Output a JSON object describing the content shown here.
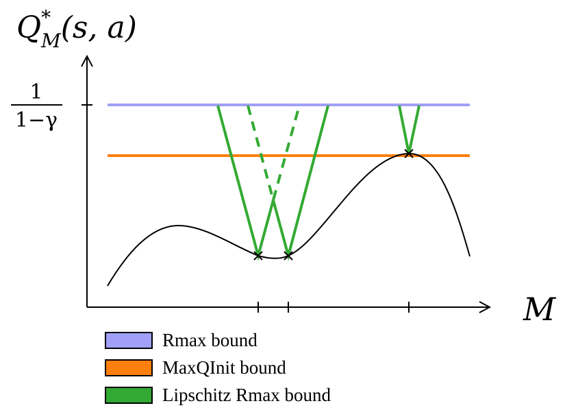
{
  "figure": {
    "ylabel_main": "Q",
    "ylabel_sup": "*",
    "ylabel_sub": "M",
    "ylabel_args": "(s, a)",
    "xlabel": "M",
    "ytick_numerator": "1",
    "ytick_denominator": "1−γ"
  },
  "colors": {
    "rmax": "#a0a0f8",
    "maxqinit": "#ff7f0e",
    "lipschitz": "#33aa33",
    "curve": "#000000",
    "axis": "#000000"
  },
  "legend": {
    "items": [
      {
        "label": "Rmax bound",
        "color": "#a0a0f8"
      },
      {
        "label": "MaxQInit bound",
        "color": "#ff7f0e"
      },
      {
        "label": "Lipschitz Rmax bound",
        "color": "#33aa33"
      }
    ]
  }
}
